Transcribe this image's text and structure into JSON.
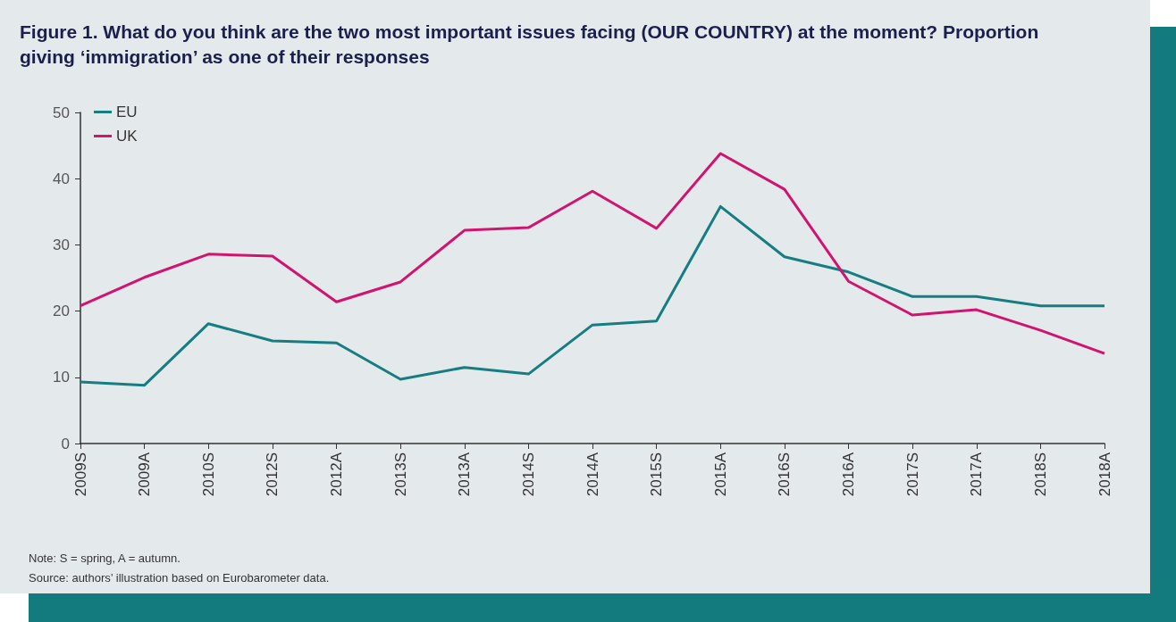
{
  "chart_data": {
    "type": "line",
    "title": "Figure 1. What do you think are the two most important issues facing (OUR COUNTRY) at the moment? Proportion giving ‘immigration’ as one of their responses",
    "categories": [
      "2009S",
      "2009A",
      "2010S",
      "2012S",
      "2012A",
      "2013S",
      "2013A",
      "2014S",
      "2014A",
      "2015S",
      "2015A",
      "2016S",
      "2016A",
      "2017S",
      "2017A",
      "2018S",
      "2018A"
    ],
    "series": [
      {
        "name": "EU",
        "color": "#167d80",
        "values": [
          9.3,
          8.8,
          18.1,
          15.5,
          15.2,
          9.7,
          11.5,
          10.5,
          17.9,
          18.5,
          35.8,
          28.2,
          25.9,
          22.2,
          22.2,
          20.8,
          20.8
        ]
      },
      {
        "name": "UK",
        "color": "#d0146f",
        "values": [
          20.8,
          25.1,
          28.6,
          28.3,
          21.4,
          24.4,
          32.2,
          32.6,
          38.1,
          32.5,
          43.8,
          38.4,
          24.5,
          19.4,
          20.2,
          17.1,
          13.6
        ]
      }
    ],
    "ylim": [
      0,
      50
    ],
    "yticks": [
      0,
      10,
      20,
      30,
      40,
      50
    ],
    "grid": false,
    "legend": "top left",
    "marker": "none",
    "line_style": "solid",
    "annotations": [
      "Note: S = spring, A = autumn.",
      "Source: authors’ illustration based on Eurobarometer data."
    ]
  }
}
